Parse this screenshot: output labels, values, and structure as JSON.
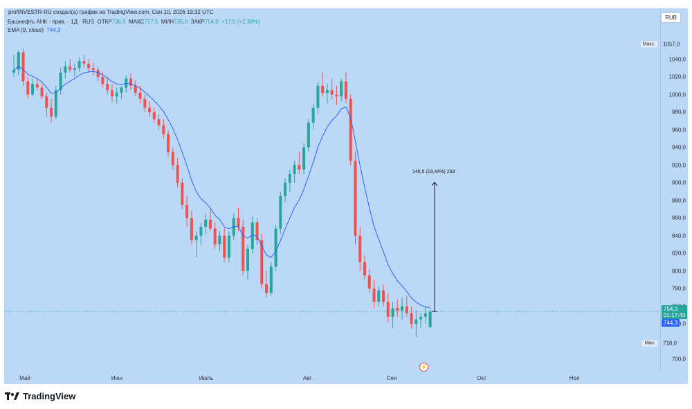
{
  "credit": "profINVESTR-RU создал(а) график на TradingView.com, Сен 10, 2026 19:32 UTC",
  "legend": {
    "symbol": "Башнефть АНК - прив. · 1Д · RUS",
    "open_label": "ОТКР",
    "open": "736,5",
    "high_label": "МАКС",
    "high": "757,5",
    "low_label": "МИН",
    "low": "735,0",
    "close_label": "ЗАКР",
    "close": "754,0",
    "change": "+17,5 (+2,38%)",
    "ema_label": "EMA (9, close)",
    "ema_value": "744,3"
  },
  "currency_button": "RUB",
  "max_label": "Макс.",
  "max_value": "1057,0",
  "min_label": "Мин.",
  "min_value": "718,0",
  "price_tag": "754,0",
  "countdown": "01:17:43",
  "ema_tag": "744,3",
  "measure_text": "146,5 (19,44%) 293",
  "brand": "TradingView",
  "colors": {
    "up": "#26a69a",
    "down": "#ef5350",
    "ema": "#2962ff",
    "background": "#bbd9f7"
  },
  "chart_data": {
    "type": "candlestick",
    "y_ticks": [
      "1040,0",
      "1020,0",
      "1000,0",
      "980,0",
      "960,0",
      "940,0",
      "920,0",
      "900,0",
      "880,0",
      "860,0",
      "840,0",
      "820,0",
      "800,0",
      "780,0",
      "760,0",
      "740,0",
      "700,0"
    ],
    "y_tick_values": [
      1040,
      1020,
      1000,
      980,
      960,
      940,
      920,
      900,
      880,
      860,
      840,
      820,
      800,
      780,
      760,
      740,
      700
    ],
    "x_ticks": [
      "Май",
      "Июн",
      "Июль",
      "Авг",
      "Сен",
      "Окт",
      "Ноя"
    ],
    "ylim": [
      690,
      1070
    ],
    "grid": false,
    "series": [
      {
        "name": "Башнефть АНК - прив.",
        "ohlc": [
          [
            1025,
            1045,
            1020,
            1028
          ],
          [
            1028,
            1050,
            1022,
            1048
          ],
          [
            1048,
            1052,
            1010,
            1015
          ],
          [
            1015,
            1020,
            995,
            1000
          ],
          [
            1000,
            1018,
            998,
            1012
          ],
          [
            1012,
            1018,
            1005,
            1008
          ],
          [
            1008,
            1012,
            995,
            998
          ],
          [
            998,
            1002,
            975,
            985
          ],
          [
            985,
            995,
            968,
            975
          ],
          [
            975,
            1010,
            972,
            1005
          ],
          [
            1005,
            1030,
            1000,
            1025
          ],
          [
            1025,
            1038,
            1018,
            1032
          ],
          [
            1032,
            1040,
            1025,
            1028
          ],
          [
            1028,
            1035,
            1020,
            1030
          ],
          [
            1030,
            1042,
            1026,
            1038
          ],
          [
            1038,
            1045,
            1030,
            1035
          ],
          [
            1035,
            1040,
            1025,
            1030
          ],
          [
            1030,
            1036,
            1022,
            1028
          ],
          [
            1028,
            1032,
            1015,
            1020
          ],
          [
            1020,
            1026,
            1008,
            1012
          ],
          [
            1012,
            1020,
            1000,
            1005
          ],
          [
            1005,
            1012,
            992,
            998
          ],
          [
            998,
            1008,
            990,
            1002
          ],
          [
            1002,
            1010,
            995,
            1008
          ],
          [
            1008,
            1022,
            1002,
            1018
          ],
          [
            1018,
            1024,
            1005,
            1010
          ],
          [
            1010,
            1016,
            998,
            1002
          ],
          [
            1002,
            1010,
            990,
            995
          ],
          [
            995,
            1000,
            980,
            985
          ],
          [
            985,
            992,
            975,
            980
          ],
          [
            980,
            985,
            968,
            972
          ],
          [
            972,
            978,
            960,
            965
          ],
          [
            965,
            972,
            950,
            955
          ],
          [
            955,
            960,
            930,
            935
          ],
          [
            935,
            940,
            915,
            920
          ],
          [
            920,
            928,
            895,
            900
          ],
          [
            900,
            905,
            870,
            875
          ],
          [
            875,
            885,
            850,
            860
          ],
          [
            860,
            868,
            830,
            835
          ],
          [
            835,
            845,
            815,
            840
          ],
          [
            840,
            855,
            830,
            850
          ],
          [
            850,
            865,
            842,
            858
          ],
          [
            858,
            870,
            845,
            848
          ],
          [
            848,
            855,
            825,
            830
          ],
          [
            830,
            845,
            822,
            840
          ],
          [
            840,
            848,
            810,
            815
          ],
          [
            815,
            845,
            810,
            840
          ],
          [
            840,
            865,
            835,
            860
          ],
          [
            860,
            872,
            845,
            850
          ],
          [
            850,
            858,
            795,
            800
          ],
          [
            800,
            830,
            790,
            825
          ],
          [
            825,
            862,
            820,
            855
          ],
          [
            855,
            860,
            830,
            835
          ],
          [
            835,
            842,
            780,
            785
          ],
          [
            785,
            800,
            770,
            775
          ],
          [
            775,
            810,
            772,
            805
          ],
          [
            805,
            852,
            800,
            848
          ],
          [
            848,
            890,
            842,
            885
          ],
          [
            885,
            905,
            878,
            900
          ],
          [
            900,
            915,
            890,
            910
          ],
          [
            910,
            925,
            900,
            920
          ],
          [
            920,
            935,
            910,
            915
          ],
          [
            915,
            945,
            910,
            940
          ],
          [
            940,
            972,
            935,
            968
          ],
          [
            968,
            990,
            960,
            985
          ],
          [
            985,
            1015,
            978,
            1010
          ],
          [
            1010,
            1025,
            998,
            1002
          ],
          [
            1002,
            1012,
            990,
            1005
          ],
          [
            1005,
            1018,
            995,
            1000
          ],
          [
            1000,
            1010,
            988,
            998
          ],
          [
            998,
            1018,
            992,
            1015
          ],
          [
            1015,
            1025,
            990,
            995
          ],
          [
            995,
            1000,
            920,
            925
          ],
          [
            925,
            935,
            830,
            840
          ],
          [
            840,
            850,
            800,
            810
          ],
          [
            810,
            818,
            790,
            795
          ],
          [
            795,
            802,
            775,
            780
          ],
          [
            780,
            790,
            758,
            765
          ],
          [
            765,
            782,
            760,
            778
          ],
          [
            778,
            785,
            760,
            765
          ],
          [
            765,
            775,
            742,
            748
          ],
          [
            748,
            765,
            735,
            758
          ],
          [
            758,
            768,
            748,
            755
          ],
          [
            755,
            770,
            745,
            760
          ],
          [
            760,
            772,
            748,
            752
          ],
          [
            752,
            760,
            735,
            740
          ],
          [
            740,
            755,
            725,
            745
          ],
          [
            745,
            752,
            735,
            748
          ],
          [
            748,
            760,
            740,
            752
          ],
          [
            736.5,
            757.5,
            735,
            754
          ]
        ]
      },
      {
        "name": "EMA (9, close)"
      }
    ],
    "measure": {
      "from": 754.0,
      "to": 900.5
    }
  }
}
